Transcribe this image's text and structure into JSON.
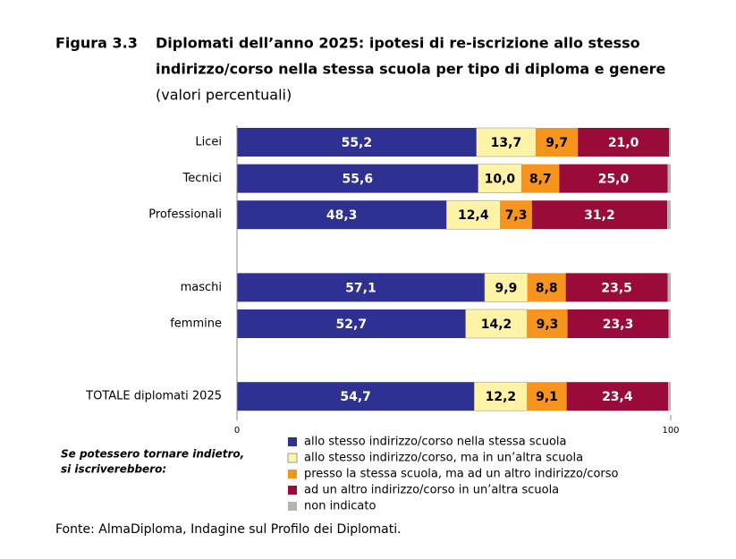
{
  "chart_data": {
    "type": "stacked-barh",
    "figure_label": "Figura 3.3",
    "title": [
      "Diplomati dell’anno 2025: ipotesi di re-iscrizione allo stesso",
      "indirizzo/corso nella stessa scuola per tipo di diploma e genere"
    ],
    "subtitle": "(valori percentuali)",
    "categories": [
      "Licei",
      "Tecnici",
      "Professionali",
      null,
      "maschi",
      "femmine",
      null,
      "TOTALE diplomati 2025"
    ],
    "series": [
      {
        "name": "allo stesso indirizzo/corso nella stessa scuola",
        "color": "#2e3192",
        "label_color": "#ffffff",
        "values": [
          55.2,
          55.6,
          48.3,
          null,
          57.1,
          52.7,
          null,
          54.7
        ],
        "value_labels": [
          "55,2",
          "55,6",
          "48,3",
          null,
          "57,1",
          "52,7",
          null,
          "54,7"
        ]
      },
      {
        "name": "allo stesso indirizzo/corso, ma in un’altra scuola",
        "color": "#fff3a8",
        "label_color": "#000000",
        "values": [
          13.7,
          10.0,
          12.4,
          null,
          9.9,
          14.2,
          null,
          12.2
        ],
        "value_labels": [
          "13,7",
          "10,0",
          "12,4",
          null,
          "9,9",
          "14,2",
          null,
          "12,2"
        ]
      },
      {
        "name": "presso la stessa scuola, ma ad un altro indirizzo/corso",
        "color": "#f7941d",
        "label_color": "#000000",
        "values": [
          9.7,
          8.7,
          7.3,
          null,
          8.8,
          9.3,
          null,
          9.1
        ],
        "value_labels": [
          "9,7",
          "8,7",
          "7,3",
          null,
          "8,8",
          "9,3",
          null,
          "9,1"
        ]
      },
      {
        "name": "ad un altro indirizzo/corso in un’altra scuola",
        "color": "#9b0b3a",
        "label_color": "#ffffff",
        "values": [
          21.0,
          25.0,
          31.2,
          null,
          23.5,
          23.3,
          null,
          23.4
        ],
        "value_labels": [
          "21,0",
          "25,0",
          "31,2",
          null,
          "23,5",
          "23,3",
          null,
          "23,4"
        ]
      },
      {
        "name": "non indicato",
        "color": "#b3b3b3",
        "values": [
          0.4,
          0.7,
          0.8,
          null,
          0.7,
          0.5,
          null,
          0.6
        ]
      }
    ],
    "xlim": [
      0,
      100
    ],
    "xticks": [
      0,
      100
    ],
    "legend_note": [
      "Se potessero tornare indietro,",
      "si iscriverebbero:"
    ],
    "source": "Fonte: AlmaDiploma, Indagine sul Profilo dei Diplomati."
  }
}
